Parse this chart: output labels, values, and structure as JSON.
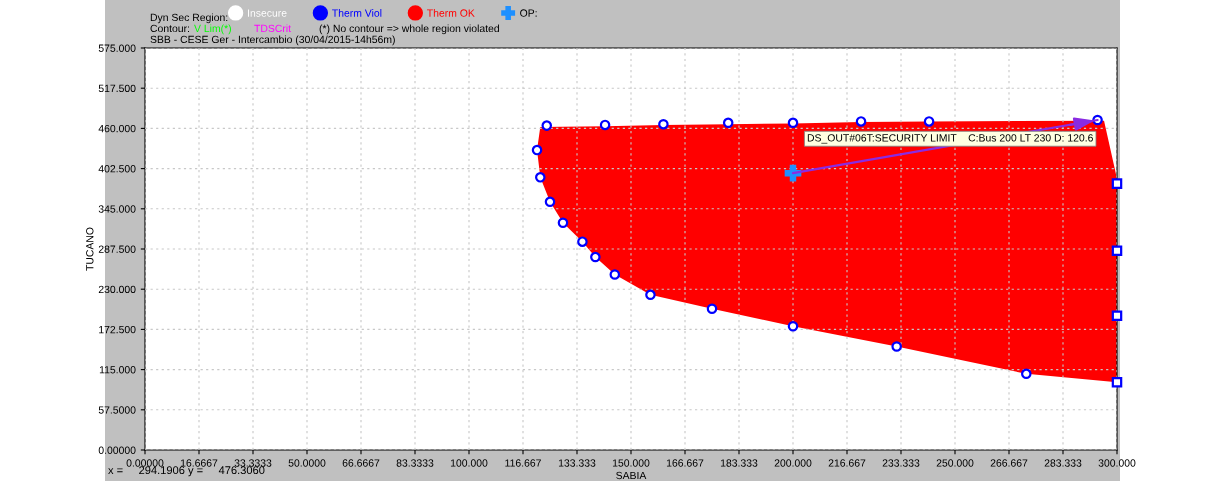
{
  "chart_data": {
    "type": "scatter",
    "title": "SBB - CESE Ger - Intercambio (30/04/2015-14h56m)",
    "xlabel": "SABIA",
    "ylabel": "TUCANO",
    "legend_title": "Dyn Sec Region:",
    "legend": "top left",
    "grid": true,
    "xlim": [
      0,
      300
    ],
    "ylim": [
      0,
      575
    ],
    "xticks": [
      {
        "value": 0,
        "label": "0.00000"
      },
      {
        "value": 16.6667,
        "label": "16.6667"
      },
      {
        "value": 33.3333,
        "label": "33.3333"
      },
      {
        "value": 50,
        "label": "50.0000"
      },
      {
        "value": 66.6667,
        "label": "66.6667"
      },
      {
        "value": 83.3333,
        "label": "83.3333"
      },
      {
        "value": 100,
        "label": "100.000"
      },
      {
        "value": 116.667,
        "label": "116.667"
      },
      {
        "value": 133.333,
        "label": "133.333"
      },
      {
        "value": 150,
        "label": "150.000"
      },
      {
        "value": 166.667,
        "label": "166.667"
      },
      {
        "value": 183.333,
        "label": "183.333"
      },
      {
        "value": 200,
        "label": "200.000"
      },
      {
        "value": 216.667,
        "label": "216.667"
      },
      {
        "value": 233.333,
        "label": "233.333"
      },
      {
        "value": 250,
        "label": "250.000"
      },
      {
        "value": 266.667,
        "label": "266.667"
      },
      {
        "value": 283.333,
        "label": "283.333"
      },
      {
        "value": 300,
        "label": "300.000"
      }
    ],
    "yticks": [
      {
        "value": 0,
        "label": "0.00000"
      },
      {
        "value": 57.5,
        "label": "57.5000"
      },
      {
        "value": 115,
        "label": "115.000"
      },
      {
        "value": 172.5,
        "label": "172.500"
      },
      {
        "value": 230,
        "label": "230.000"
      },
      {
        "value": 287.5,
        "label": "287.500"
      },
      {
        "value": 345,
        "label": "345.000"
      },
      {
        "value": 402.5,
        "label": "402.500"
      },
      {
        "value": 460,
        "label": "460.000"
      },
      {
        "value": 517.5,
        "label": "517.500"
      },
      {
        "value": 575,
        "label": "575.000"
      }
    ],
    "series": [
      {
        "name": "Insecure",
        "type": "area",
        "color": "#ffffff"
      },
      {
        "name": "Therm Viol",
        "type": "area",
        "color": "#0000ff"
      },
      {
        "name": "Therm OK",
        "type": "area",
        "color": "#ff0000",
        "x": [
          122,
          142,
          160,
          180,
          200,
          221,
          242,
          296,
          300,
          300,
          272,
          232,
          200,
          175,
          156,
          145,
          139,
          135,
          129,
          125,
          122,
          121
        ],
        "values": [
          462,
          463,
          465,
          466,
          467,
          469,
          470,
          471,
          388,
          97,
          109,
          148,
          177,
          202,
          222,
          251,
          276,
          298,
          325,
          355,
          390,
          429
        ]
      },
      {
        "name": "OP:",
        "marker": "cross",
        "color": "#1e90ff",
        "x": [
          200
        ],
        "values": [
          396
        ]
      },
      {
        "name": "V Lim(*)",
        "type": "line",
        "color": "#00ff00"
      },
      {
        "name": "TDSCrit",
        "type": "line",
        "color": "#ff00ff"
      },
      {
        "type": "line",
        "color": "#8a2be2",
        "x": [
          200,
          294
        ],
        "values": [
          396,
          472
        ]
      },
      {
        "marker": "circle",
        "color": "#0000ff",
        "x": [
          124,
          142,
          160,
          180,
          200,
          221,
          242,
          294,
          121,
          122,
          125,
          129,
          135,
          139,
          145,
          156,
          175,
          200,
          232,
          272
        ],
        "values": [
          464,
          465,
          466,
          468,
          468,
          470,
          470,
          472,
          429,
          390,
          355,
          325,
          298,
          276,
          251,
          222,
          202,
          177,
          148,
          109
        ]
      },
      {
        "marker": "square",
        "color": "#0000ff",
        "x": [
          300,
          300,
          300,
          300
        ],
        "values": [
          381,
          285,
          192,
          97
        ]
      }
    ],
    "annotations": [
      "Contour:",
      "(*) No contour => whole region violated",
      {
        "text": "DS_OUT#06T:SECURITY LIMIT    C:Bus 200 LT 230 D: 120.6",
        "x": 294,
        "y": 472
      },
      "x =     294.1906 y =     476.3060"
    ]
  }
}
